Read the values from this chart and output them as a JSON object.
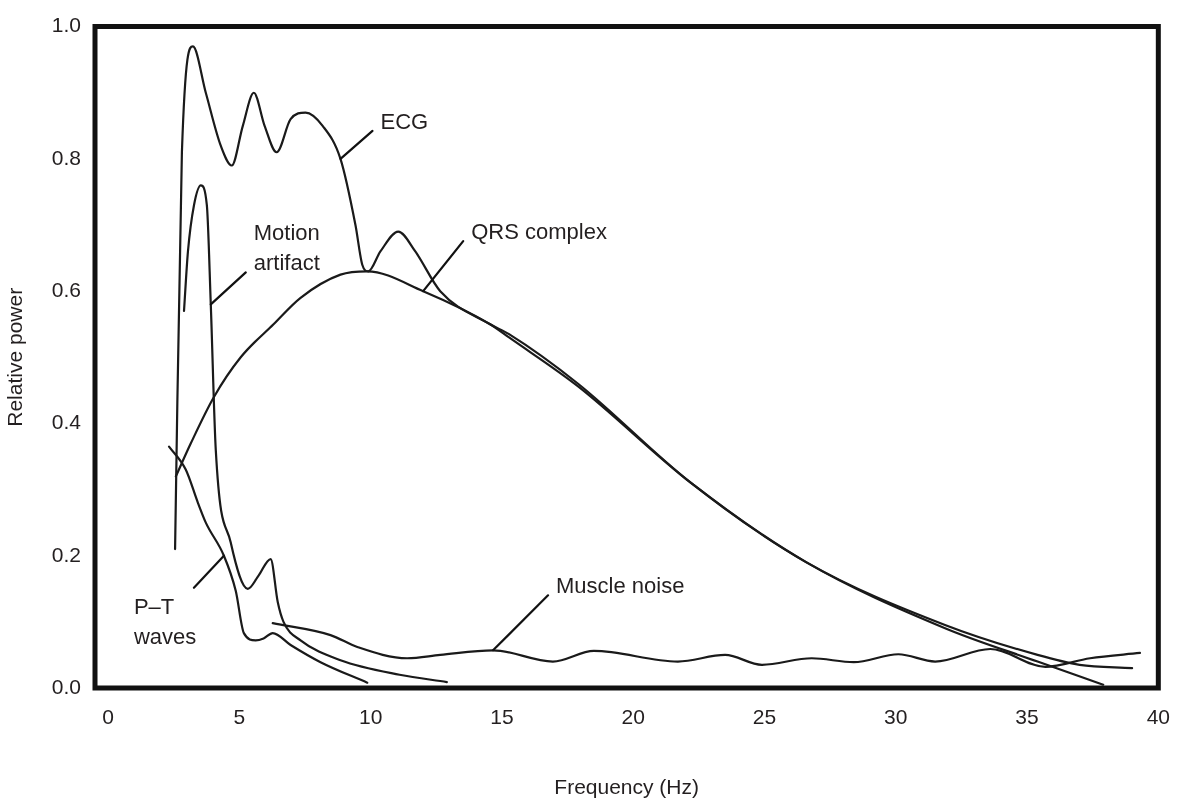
{
  "chart_data": {
    "type": "line",
    "xlabel": "Frequency (Hz)",
    "ylabel": "Relative power",
    "xlim": [
      -0.5,
      40
    ],
    "xticks": [
      0,
      5,
      10,
      15,
      20,
      25,
      30,
      35,
      40
    ],
    "ylim": [
      0,
      1
    ],
    "yticks": [
      {
        "value": 0,
        "label": "0.0"
      },
      {
        "value": 0.2,
        "label": "0.2"
      },
      {
        "value": 0.4,
        "label": "0.4"
      },
      {
        "value": 0.6,
        "label": "0.6"
      },
      {
        "value": 0.8,
        "label": "0.8"
      },
      {
        "value": 1,
        "label": "1.0"
      }
    ],
    "grid": false,
    "legend": false,
    "series": [
      {
        "color": "#1a1a1a",
        "x": [
          2.55,
          2.81,
          3.23,
          3.72,
          4.29,
          4.71,
          5.13,
          5.55,
          5.96,
          6.42,
          6.95,
          7.52,
          8.17,
          8.85,
          9.42,
          9.68,
          9.91,
          10.37,
          11.05,
          11.7,
          12.65,
          14.55,
          15.27,
          17.9,
          22.2,
          26.6,
          31.9,
          35.4,
          37,
          39
        ],
        "values": [
          0.21,
          0.81,
          0.97,
          0.9,
          0.82,
          0.79,
          0.85,
          0.9,
          0.85,
          0.81,
          0.86,
          0.87,
          0.85,
          0.8,
          0.7,
          0.64,
          0.63,
          0.66,
          0.69,
          0.66,
          0.6,
          0.55,
          0.535,
          0.46,
          0.31,
          0.19,
          0.095,
          0.05,
          0.035,
          0.03
        ]
      },
      {
        "color": "#1a1a1a",
        "x": [
          2.58,
          3.15,
          4.03,
          5.05,
          6.3,
          7.33,
          8.85,
          9.87,
          12,
          14.55,
          15.27,
          17.9,
          22.2,
          26.6,
          31.9,
          35.4,
          37.9
        ],
        "values": [
          0.32,
          0.37,
          0.44,
          0.5,
          0.55,
          0.59,
          0.625,
          0.63,
          0.6,
          0.55,
          0.53,
          0.456,
          0.31,
          0.19,
          0.09,
          0.04,
          0.005
        ]
      },
      {
        "color": "#1a1a1a",
        "x": [
          2.89,
          3.04,
          3.27,
          3.53,
          3.76,
          3.91,
          4.1,
          4.67,
          5.32,
          5.73,
          6.19,
          6.46,
          6.68,
          7.33,
          8.85,
          11.1,
          12.9
        ],
        "values": [
          0.57,
          0.66,
          0.73,
          0.76,
          0.73,
          0.58,
          0.36,
          0.22,
          0.15,
          0.17,
          0.195,
          0.13,
          0.1,
          0.072,
          0.042,
          0.02,
          0.009
        ]
      },
      {
        "color": "#1a1a1a",
        "x": [
          2.32,
          2.96,
          3.42,
          3.72,
          4.41,
          4.86,
          5.17,
          5.62,
          5.92,
          6.27,
          6.95,
          8.09,
          9.87
        ],
        "values": [
          0.365,
          0.33,
          0.28,
          0.25,
          0.2,
          0.147,
          0.083,
          0.072,
          0.075,
          0.083,
          0.065,
          0.039,
          0.008
        ]
      },
      {
        "color": "#1a1a1a",
        "x": [
          6.27,
          8.47,
          9.49,
          11.39,
          12.65,
          14.66,
          16.94,
          18.5,
          21.7,
          23.5,
          24.9,
          26.8,
          28.4,
          30.1,
          31.5,
          33.6,
          35.7,
          37.4,
          39.3
        ],
        "values": [
          0.098,
          0.08,
          0.062,
          0.045,
          0.05,
          0.057,
          0.04,
          0.056,
          0.04,
          0.05,
          0.035,
          0.045,
          0.039,
          0.051,
          0.04,
          0.059,
          0.032,
          0.045,
          0.053
        ]
      }
    ],
    "annotations": [
      {
        "text": "ECG",
        "x": 8.85,
        "y": 0.8
      },
      {
        "text": "QRS complex",
        "x": 12,
        "y": 0.6
      },
      {
        "text": "Motion\nartifact",
        "x": 3.91,
        "y": 0.58
      },
      {
        "text": "P–T\nwaves",
        "x": 4.41,
        "y": 0.2
      },
      {
        "text": "Muscle noise",
        "x": 14.66,
        "y": 0.057
      }
    ]
  }
}
